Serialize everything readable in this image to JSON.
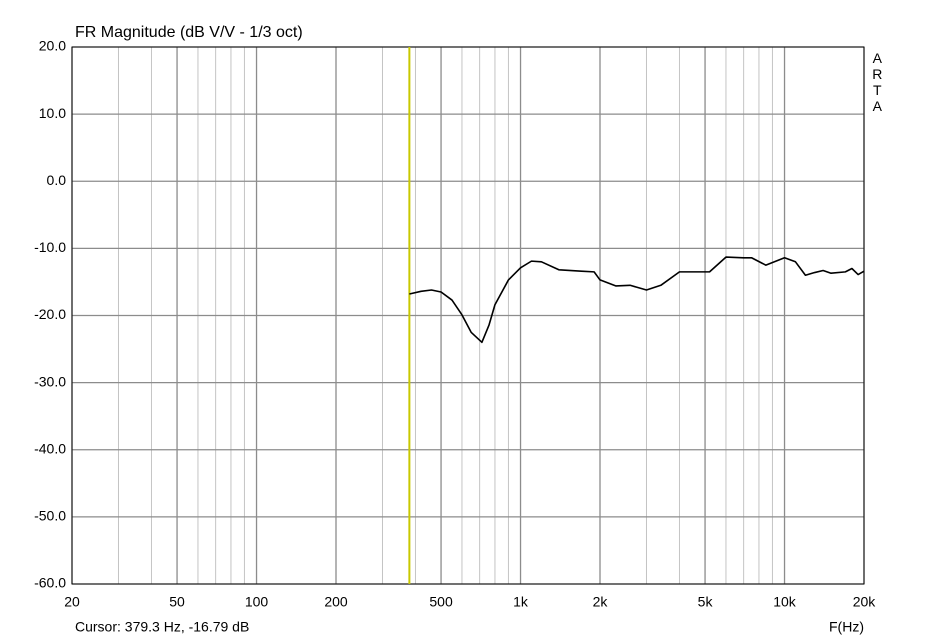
{
  "chart_data": {
    "type": "line",
    "title": "FR Magnitude (dB V/V - 1/3 oct)",
    "watermark": "ARTA",
    "x_label": "F(Hz)",
    "log_x": true,
    "grid": true,
    "xlim": [
      20,
      20000
    ],
    "ylim": [
      -60,
      20
    ],
    "xticks": [
      20,
      50,
      100,
      200,
      500,
      {
        "value": 1000,
        "label": "1k"
      },
      {
        "value": 2000,
        "label": "2k"
      },
      {
        "value": 5000,
        "label": "5k"
      },
      {
        "value": 10000,
        "label": "10k"
      },
      {
        "value": 20000,
        "label": "20k"
      }
    ],
    "x_minor_grid": [
      30,
      40,
      60,
      70,
      80,
      90,
      300,
      400,
      600,
      700,
      800,
      900,
      3000,
      4000,
      6000,
      7000,
      8000,
      9000
    ],
    "yticks": [
      {
        "value": 20,
        "label": "20.0"
      },
      {
        "value": 10,
        "label": "10.0"
      },
      {
        "value": 0,
        "label": "0.0"
      },
      {
        "value": -10,
        "label": "-10.0"
      },
      {
        "value": -20,
        "label": "-20.0"
      },
      {
        "value": -30,
        "label": "-30.0"
      },
      {
        "value": -40,
        "label": "-40.0"
      },
      {
        "value": -50,
        "label": "-50.0"
      },
      {
        "value": -60,
        "label": "-60.0"
      }
    ],
    "cursor": {
      "x": 379.3,
      "color": "#c8c800",
      "label": "Cursor: 379.3 Hz, -16.79 dB"
    },
    "x": [
      379.3,
      420,
      460,
      500,
      550,
      600,
      650,
      714,
      760,
      800,
      900,
      1000,
      1100,
      1200,
      1400,
      1700,
      1900,
      2000,
      2300,
      2600,
      3000,
      3400,
      4000,
      4500,
      5200,
      6000,
      7000,
      7500,
      8500,
      10000,
      11000,
      12000,
      13000,
      14000,
      15000,
      17000,
      18000,
      19000,
      20000
    ],
    "series": [
      {
        "name": "FR",
        "color": "#000000",
        "values": [
          -16.8,
          -16.4,
          -16.2,
          -16.5,
          -17.7,
          -19.9,
          -22.5,
          -24.0,
          -21.4,
          -18.4,
          -14.7,
          -12.9,
          -11.9,
          -12.0,
          -13.2,
          -13.4,
          -13.5,
          -14.7,
          -15.6,
          -15.5,
          -16.2,
          -15.5,
          -13.5,
          -13.5,
          -13.5,
          -11.3,
          -11.4,
          -11.4,
          -12.5,
          -11.4,
          -12.0,
          -14.0,
          -13.6,
          -13.3,
          -13.7,
          -13.5,
          -13.0,
          -13.9,
          -13.4
        ]
      }
    ]
  }
}
